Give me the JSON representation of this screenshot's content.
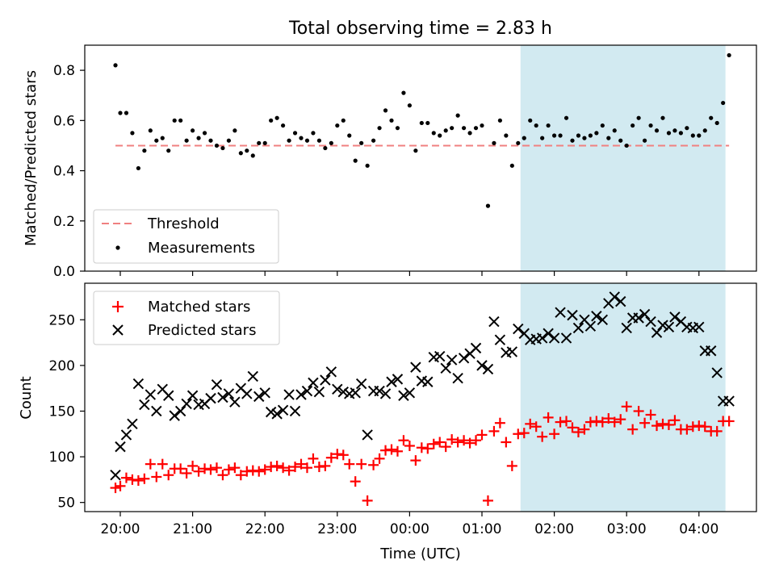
{
  "figure": {
    "title": "Total observing time = 2.83 h"
  },
  "chart_data": [
    {
      "type": "scatter",
      "ylabel": "Matched/Predicted stars",
      "ylim": [
        0,
        0.9
      ],
      "yticks": [
        0.0,
        0.2,
        0.4,
        0.6,
        0.8
      ],
      "ytick_labels": [
        "0.0",
        "0.2",
        "0.4",
        "0.6",
        "0.8"
      ],
      "threshold": {
        "name": "Threshold",
        "value": 0.5,
        "color": "#f08080"
      },
      "legend": {
        "placement": "lower-left",
        "entries": [
          "Threshold",
          "Measurements"
        ]
      },
      "series": [
        {
          "name": "Measurements",
          "marker": "dot",
          "color": "#000000",
          "x": [
            "19:56",
            "20:00",
            "20:05",
            "20:10",
            "20:15",
            "20:20",
            "20:25",
            "20:30",
            "20:35",
            "20:40",
            "20:45",
            "20:50",
            "20:55",
            "21:00",
            "21:05",
            "21:10",
            "21:15",
            "21:20",
            "21:25",
            "21:30",
            "21:35",
            "21:40",
            "21:45",
            "21:50",
            "21:55",
            "22:00",
            "22:05",
            "22:10",
            "22:15",
            "22:20",
            "22:25",
            "22:30",
            "22:35",
            "22:40",
            "22:45",
            "22:50",
            "22:55",
            "23:00",
            "23:05",
            "23:10",
            "23:15",
            "23:20",
            "23:25",
            "23:30",
            "23:35",
            "23:40",
            "23:45",
            "23:50",
            "23:55",
            "00:00",
            "00:05",
            "00:10",
            "00:15",
            "00:20",
            "00:25",
            "00:30",
            "00:35",
            "00:40",
            "00:45",
            "00:50",
            "00:55",
            "01:00",
            "01:05",
            "01:10",
            "01:15",
            "01:20",
            "01:25",
            "01:30",
            "01:35",
            "01:40",
            "01:45",
            "01:50",
            "01:55",
            "02:00",
            "02:05",
            "02:10",
            "02:15",
            "02:20",
            "02:25",
            "02:30",
            "02:35",
            "02:40",
            "02:45",
            "02:50",
            "02:55",
            "03:00",
            "03:05",
            "03:10",
            "03:15",
            "03:20",
            "03:25",
            "03:30",
            "03:35",
            "03:40",
            "03:45",
            "03:50",
            "03:55",
            "04:00",
            "04:05",
            "04:10",
            "04:15",
            "04:20",
            "04:25"
          ],
          "y": [
            0.82,
            0.63,
            0.63,
            0.55,
            0.41,
            0.48,
            0.56,
            0.52,
            0.53,
            0.48,
            0.6,
            0.6,
            0.52,
            0.56,
            0.53,
            0.55,
            0.52,
            0.5,
            0.49,
            0.52,
            0.56,
            0.47,
            0.48,
            0.46,
            0.51,
            0.51,
            0.6,
            0.61,
            0.58,
            0.52,
            0.55,
            0.53,
            0.52,
            0.55,
            0.52,
            0.49,
            0.51,
            0.58,
            0.6,
            0.54,
            0.44,
            0.51,
            0.42,
            0.52,
            0.57,
            0.64,
            0.6,
            0.57,
            0.71,
            0.66,
            0.48,
            0.59,
            0.59,
            0.55,
            0.54,
            0.56,
            0.57,
            0.62,
            0.57,
            0.55,
            0.57,
            0.58,
            0.26,
            0.51,
            0.6,
            0.54,
            0.42,
            0.51,
            0.53,
            0.6,
            0.58,
            0.53,
            0.58,
            0.54,
            0.54,
            0.61,
            0.52,
            0.54,
            0.53,
            0.54,
            0.55,
            0.58,
            0.53,
            0.56,
            0.52,
            0.5,
            0.58,
            0.61,
            0.52,
            0.58,
            0.56,
            0.61,
            0.55,
            0.56,
            0.55,
            0.57,
            0.54,
            0.54,
            0.56,
            0.61,
            0.59,
            0.67,
            0.86
          ]
        }
      ],
      "shaded_region": {
        "from": "01:32",
        "to": "04:22",
        "color": "#add8e6"
      }
    },
    {
      "type": "scatter",
      "ylabel": "Count",
      "xlabel": "Time (UTC)",
      "ylim": [
        40,
        290
      ],
      "yticks": [
        50,
        100,
        150,
        200,
        250
      ],
      "ytick_labels": [
        "50",
        "100",
        "150",
        "200",
        "250"
      ],
      "xticks": [
        "20:00",
        "21:00",
        "22:00",
        "23:00",
        "00:00",
        "01:00",
        "02:00",
        "03:00",
        "04:00"
      ],
      "legend": {
        "placement": "upper-left",
        "entries": [
          "Matched stars",
          "Predicted stars"
        ]
      },
      "series": [
        {
          "name": "Matched stars",
          "marker": "plus",
          "color": "#ff0000",
          "x": [
            "19:56",
            "20:00",
            "20:05",
            "20:10",
            "20:15",
            "20:20",
            "20:25",
            "20:30",
            "20:35",
            "20:40",
            "20:45",
            "20:50",
            "20:55",
            "21:00",
            "21:05",
            "21:10",
            "21:15",
            "21:20",
            "21:25",
            "21:30",
            "21:35",
            "21:40",
            "21:45",
            "21:50",
            "21:55",
            "22:00",
            "22:05",
            "22:10",
            "22:15",
            "22:20",
            "22:25",
            "22:30",
            "22:35",
            "22:40",
            "22:45",
            "22:50",
            "22:55",
            "23:00",
            "23:05",
            "23:10",
            "23:15",
            "23:20",
            "23:25",
            "23:30",
            "23:35",
            "23:40",
            "23:45",
            "23:50",
            "23:55",
            "00:00",
            "00:05",
            "00:10",
            "00:15",
            "00:20",
            "00:25",
            "00:30",
            "00:35",
            "00:40",
            "00:45",
            "00:50",
            "00:55",
            "01:00",
            "01:05",
            "01:10",
            "01:15",
            "01:20",
            "01:25",
            "01:30",
            "01:35",
            "01:40",
            "01:45",
            "01:50",
            "01:55",
            "02:00",
            "02:05",
            "02:10",
            "02:15",
            "02:20",
            "02:25",
            "02:30",
            "02:35",
            "02:40",
            "02:45",
            "02:50",
            "02:55",
            "03:00",
            "03:05",
            "03:10",
            "03:15",
            "03:20",
            "03:25",
            "03:30",
            "03:35",
            "03:40",
            "03:45",
            "03:50",
            "03:55",
            "04:00",
            "04:05",
            "04:10",
            "04:15",
            "04:20",
            "04:25"
          ],
          "y": [
            66,
            68,
            77,
            75,
            74,
            76,
            92,
            78,
            92,
            80,
            87,
            87,
            82,
            90,
            84,
            87,
            86,
            88,
            80,
            86,
            88,
            80,
            84,
            85,
            84,
            86,
            89,
            90,
            88,
            85,
            89,
            92,
            88,
            98,
            89,
            90,
            99,
            103,
            102,
            92,
            73,
            92,
            52,
            91,
            98,
            107,
            108,
            106,
            118,
            112,
            96,
            110,
            109,
            114,
            116,
            111,
            119,
            116,
            118,
            115,
            118,
            124,
            52,
            128,
            137,
            116,
            90,
            125,
            126,
            136,
            133,
            122,
            143,
            125,
            138,
            139,
            132,
            127,
            130,
            138,
            139,
            138,
            142,
            138,
            141,
            155,
            130,
            150,
            137,
            146,
            134,
            136,
            135,
            140,
            130,
            130,
            133,
            134,
            133,
            128,
            128,
            139,
            139
          ]
        },
        {
          "name": "Predicted stars",
          "marker": "cross",
          "color": "#000000",
          "x": [
            "19:56",
            "20:00",
            "20:05",
            "20:10",
            "20:15",
            "20:20",
            "20:25",
            "20:30",
            "20:35",
            "20:40",
            "20:45",
            "20:50",
            "20:55",
            "21:00",
            "21:05",
            "21:10",
            "21:15",
            "21:20",
            "21:25",
            "21:30",
            "21:35",
            "21:40",
            "21:45",
            "21:50",
            "21:55",
            "22:00",
            "22:05",
            "22:10",
            "22:15",
            "22:20",
            "22:25",
            "22:30",
            "22:35",
            "22:40",
            "22:45",
            "22:50",
            "22:55",
            "23:00",
            "23:05",
            "23:10",
            "23:15",
            "23:20",
            "23:25",
            "23:30",
            "23:35",
            "23:40",
            "23:45",
            "23:50",
            "23:55",
            "00:00",
            "00:05",
            "00:10",
            "00:15",
            "00:20",
            "00:25",
            "00:30",
            "00:35",
            "00:40",
            "00:45",
            "00:50",
            "00:55",
            "01:00",
            "01:05",
            "01:10",
            "01:15",
            "01:20",
            "01:25",
            "01:30",
            "01:35",
            "01:40",
            "01:45",
            "01:50",
            "01:55",
            "02:00",
            "02:05",
            "02:10",
            "02:15",
            "02:20",
            "02:25",
            "02:30",
            "02:35",
            "02:40",
            "02:45",
            "02:50",
            "02:55",
            "03:00",
            "03:05",
            "03:10",
            "03:15",
            "03:20",
            "03:25",
            "03:30",
            "03:35",
            "03:40",
            "03:45",
            "03:50",
            "03:55",
            "04:00",
            "04:05",
            "04:10",
            "04:15",
            "04:20",
            "04:25"
          ],
          "y": [
            80,
            111,
            124,
            136,
            180,
            157,
            168,
            150,
            174,
            167,
            145,
            150,
            158,
            167,
            157,
            158,
            164,
            179,
            165,
            169,
            160,
            175,
            169,
            188,
            166,
            170,
            149,
            147,
            151,
            168,
            150,
            168,
            172,
            181,
            171,
            184,
            193,
            174,
            171,
            169,
            170,
            180,
            124,
            172,
            172,
            169,
            182,
            185,
            167,
            170,
            198,
            183,
            182,
            209,
            210,
            197,
            206,
            186,
            208,
            213,
            219,
            200,
            196,
            248,
            228,
            214,
            215,
            240,
            235,
            228,
            229,
            230,
            235,
            230,
            258,
            230,
            255,
            241,
            250,
            243,
            254,
            250,
            268,
            275,
            270,
            241,
            252,
            252,
            256,
            248,
            236,
            244,
            242,
            253,
            248,
            242,
            241,
            242,
            216,
            216,
            192,
            161,
            161
          ]
        }
      ],
      "shaded_region": {
        "from": "01:32",
        "to": "04:22",
        "color": "#add8e6"
      }
    }
  ]
}
